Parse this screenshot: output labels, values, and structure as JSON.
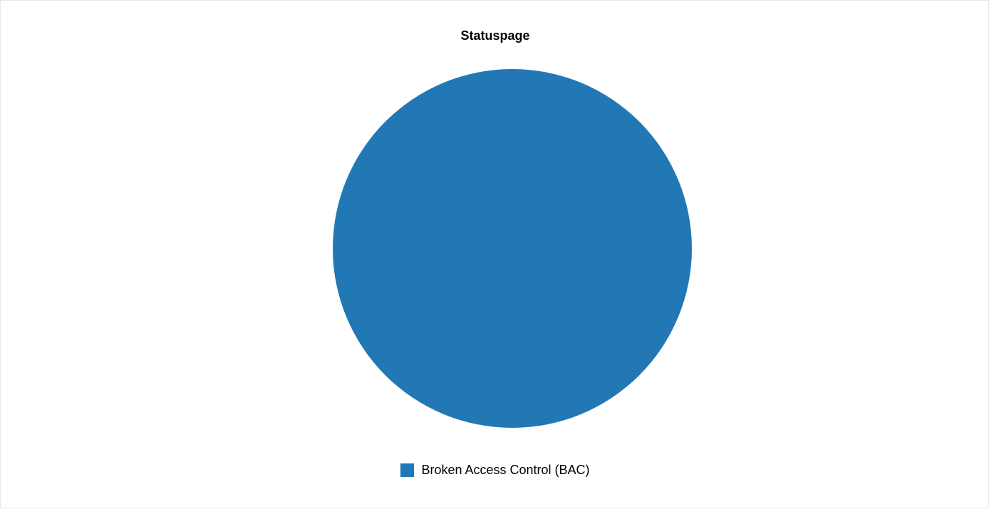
{
  "chart_data": {
    "type": "pie",
    "title": "Statuspage",
    "categories": [
      "Broken Access Control (BAC)"
    ],
    "values": [
      1
    ],
    "colors": [
      "#2278b4"
    ],
    "legend": {
      "placement": "bottom",
      "entries": [
        "Broken Access Control (BAC)"
      ]
    }
  }
}
